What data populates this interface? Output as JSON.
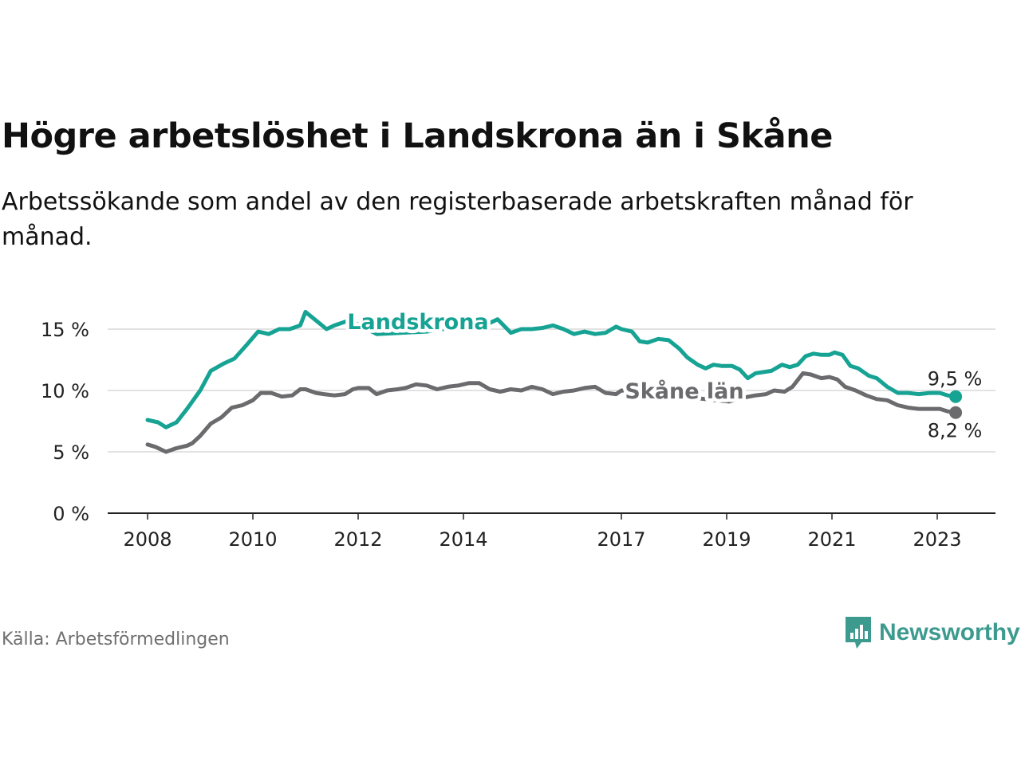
{
  "title": "Högre arbetslöshet i Landskrona än i Skåne",
  "subtitle": "Arbetssökande som andel av den registerbaserade arbetskraften månad för månad.",
  "source": "Källa: Arbetsförmedlingen",
  "brand": {
    "name": "Newsworthy",
    "icon": "newsworthy-logo-icon",
    "color": "#3d9a8f"
  },
  "chart_data": {
    "type": "line",
    "title": "Högre arbetslöshet i Landskrona än i Skåne",
    "xlabel": "",
    "ylabel": "",
    "x_range": [
      2008.0,
      2023.4
    ],
    "ylim": [
      0,
      17
    ],
    "y_ticks": [
      0,
      5,
      10,
      15
    ],
    "y_tick_labels": [
      "0 %",
      "5 %",
      "10 %",
      "15 %"
    ],
    "x_ticks": [
      2008,
      2010,
      2012,
      2014,
      2017,
      2019,
      2021,
      2023
    ],
    "x_tick_labels": [
      "2008",
      "2010",
      "2012",
      "2014",
      "2017",
      "2019",
      "2021",
      "2023"
    ],
    "grid": "horizontal",
    "series": [
      {
        "name": "Landskrona",
        "color": "#16a394",
        "end_label": "9,5 %",
        "x": [
          2008.0,
          2008.2,
          2008.35,
          2008.55,
          2008.75,
          2009.0,
          2009.2,
          2009.45,
          2009.65,
          2009.9,
          2010.1,
          2010.3,
          2010.5,
          2010.7,
          2010.9,
          2011.0,
          2011.2,
          2011.4,
          2011.55,
          2011.75,
          2011.9,
          2012.35,
          2013.3,
          2013.9,
          2014.2,
          2014.45,
          2014.65,
          2014.9,
          2015.1,
          2015.3,
          2015.5,
          2015.7,
          2015.9,
          2016.1,
          2016.3,
          2016.5,
          2016.7,
          2016.9,
          2017.0,
          2017.2,
          2017.35,
          2017.5,
          2017.7,
          2017.9,
          2018.1,
          2018.25,
          2018.45,
          2018.6,
          2018.75,
          2018.9,
          2019.1,
          2019.25,
          2019.4,
          2019.55,
          2019.7,
          2019.85,
          2020.05,
          2020.2,
          2020.35,
          2020.5,
          2020.65,
          2020.8,
          2020.95,
          2021.05,
          2021.2,
          2021.35,
          2021.5,
          2021.7,
          2021.85,
          2022.05,
          2022.25,
          2022.45,
          2022.65,
          2022.85,
          2023.05,
          2023.2,
          2023.35
        ],
        "values": [
          7.6,
          7.4,
          7.0,
          7.4,
          8.5,
          10.0,
          11.6,
          12.2,
          12.6,
          13.8,
          14.8,
          14.6,
          15.0,
          15.0,
          15.3,
          16.4,
          15.7,
          15.0,
          15.3,
          15.6,
          15.6,
          14.6,
          14.8,
          15.2,
          15.0,
          15.4,
          15.8,
          14.7,
          15.0,
          15.0,
          15.1,
          15.3,
          15.0,
          14.6,
          14.8,
          14.6,
          14.7,
          15.2,
          15.0,
          14.8,
          14.0,
          13.9,
          14.2,
          14.1,
          13.4,
          12.7,
          12.1,
          11.8,
          12.1,
          12.0,
          12.0,
          11.7,
          11.0,
          11.4,
          11.5,
          11.6,
          12.1,
          11.9,
          12.1,
          12.8,
          13.0,
          12.9,
          12.9,
          13.1,
          12.9,
          12.0,
          11.8,
          11.2,
          11.0,
          10.3,
          9.8,
          9.8,
          9.7,
          9.8,
          9.8,
          9.6,
          9.5
        ]
      },
      {
        "name": "Skåne län",
        "color": "#6b6b6e",
        "end_label": "8,2 %",
        "x": [
          2008.0,
          2008.15,
          2008.35,
          2008.55,
          2008.75,
          2008.85,
          2009.0,
          2009.2,
          2009.4,
          2009.6,
          2009.8,
          2010.0,
          2010.15,
          2010.35,
          2010.55,
          2010.75,
          2010.9,
          2011.0,
          2011.2,
          2011.35,
          2011.55,
          2011.75,
          2011.9,
          2012.0,
          2012.2,
          2012.35,
          2012.55,
          2012.75,
          2012.9,
          2013.1,
          2013.3,
          2013.5,
          2013.7,
          2013.9,
          2014.1,
          2014.3,
          2014.5,
          2014.7,
          2014.9,
          2015.1,
          2015.3,
          2015.5,
          2015.7,
          2015.9,
          2016.1,
          2016.3,
          2016.5,
          2016.7,
          2016.9,
          2017.0,
          2019.05,
          2019.3,
          2019.55,
          2019.75,
          2019.9,
          2020.1,
          2020.25,
          2020.45,
          2020.6,
          2020.8,
          2020.95,
          2021.1,
          2021.25,
          2021.45,
          2021.65,
          2021.85,
          2022.05,
          2022.25,
          2022.45,
          2022.65,
          2022.85,
          2023.05,
          2023.2,
          2023.35
        ],
        "values": [
          5.6,
          5.4,
          5.0,
          5.3,
          5.5,
          5.7,
          6.3,
          7.3,
          7.8,
          8.6,
          8.8,
          9.2,
          9.8,
          9.8,
          9.5,
          9.6,
          10.1,
          10.1,
          9.8,
          9.7,
          9.6,
          9.7,
          10.1,
          10.2,
          10.2,
          9.7,
          10.0,
          10.1,
          10.2,
          10.5,
          10.4,
          10.1,
          10.3,
          10.4,
          10.6,
          10.6,
          10.1,
          9.9,
          10.1,
          10.0,
          10.3,
          10.1,
          9.7,
          9.9,
          10.0,
          10.2,
          10.3,
          9.8,
          9.7,
          10.0,
          9.1,
          9.4,
          9.6,
          9.7,
          10.0,
          9.9,
          10.3,
          11.4,
          11.3,
          11.0,
          11.1,
          10.9,
          10.3,
          10.0,
          9.6,
          9.3,
          9.2,
          8.8,
          8.6,
          8.5,
          8.5,
          8.5,
          8.3,
          8.2
        ]
      }
    ]
  }
}
